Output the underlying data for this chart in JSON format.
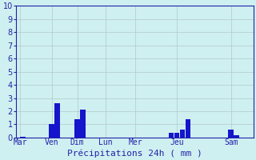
{
  "categories": [
    "Mar",
    "Ven",
    "Dim",
    "Lun",
    "Mer",
    "Jeu",
    "Sam"
  ],
  "all_bars": [
    [
      0.08,
      0.05
    ],
    [
      0.95,
      1.0
    ],
    [
      1.12,
      2.6
    ],
    [
      1.72,
      1.4
    ],
    [
      1.89,
      2.1
    ],
    [
      4.55,
      0.35
    ],
    [
      4.72,
      0.35
    ],
    [
      4.89,
      0.6
    ],
    [
      5.06,
      1.4
    ],
    [
      6.35,
      0.6
    ],
    [
      6.52,
      0.2
    ]
  ],
  "day_tick_positions": [
    0.08,
    1.03,
    1.8,
    2.65,
    3.55,
    4.8,
    6.43
  ],
  "xlabel": "Précipitations 24h ( mm )",
  "ylim": [
    0,
    10
  ],
  "yticks": [
    0,
    1,
    2,
    3,
    4,
    5,
    6,
    7,
    8,
    9,
    10
  ],
  "xlim": [
    -0.05,
    7.1
  ],
  "bar_color": "#1515cc",
  "bar_width": 0.15,
  "background_color": "#cff0f0",
  "grid_color": "#b0c8c8",
  "spine_color": "#2222aa",
  "tick_label_color": "#2222aa",
  "xlabel_fontsize": 8,
  "ytick_fontsize": 7,
  "xtick_fontsize": 7
}
